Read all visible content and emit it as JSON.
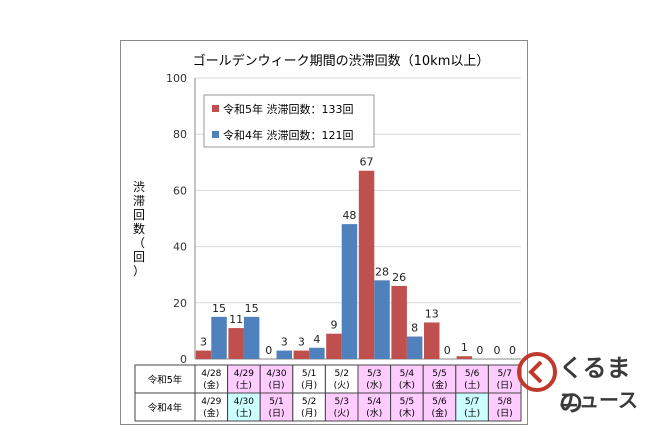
{
  "chart_data": {
    "type": "bar",
    "title": "ゴールデンウィーク期間の渋滞回数（10km以上）",
    "ylabel": "渋滞回数（回）",
    "ylim": [
      0,
      100
    ],
    "yticks": [
      0,
      20,
      40,
      60,
      80,
      100
    ],
    "legend_position": "top-left",
    "series": [
      {
        "name": "令和5年 渋滞回数：133回",
        "color": "#c0504d",
        "values": [
          3,
          11,
          0,
          3,
          9,
          67,
          26,
          13,
          1,
          0
        ],
        "row_label": "令和5年",
        "dates": [
          [
            "4/28",
            "(金)"
          ],
          [
            "4/29",
            "(土)"
          ],
          [
            "4/30",
            "(日)"
          ],
          [
            "5/1",
            "(月)"
          ],
          [
            "5/2",
            "(火)"
          ],
          [
            "5/3",
            "(水)"
          ],
          [
            "5/4",
            "(木)"
          ],
          [
            "5/5",
            "(金)"
          ],
          [
            "5/6",
            "(土)"
          ],
          [
            "5/7",
            "(日)"
          ]
        ]
      },
      {
        "name": "令和4年 渋滞回数：121回",
        "color": "#4f81bd",
        "values": [
          15,
          15,
          3,
          4,
          48,
          28,
          8,
          0,
          0,
          0
        ],
        "row_label": "令和4年",
        "dates": [
          [
            "4/29",
            "(金)"
          ],
          [
            "4/30",
            "(土)"
          ],
          [
            "5/1",
            "(日)"
          ],
          [
            "5/2",
            "(月)"
          ],
          [
            "5/3",
            "(火)"
          ],
          [
            "5/4",
            "(水)"
          ],
          [
            "5/5",
            "(木)"
          ],
          [
            "5/6",
            "(金)"
          ],
          [
            "5/7",
            "(土)"
          ],
          [
            "5/8",
            "(日)"
          ]
        ]
      }
    ],
    "cell_colors": [
      "#ffffff",
      "#ffccff",
      "#ffccff",
      "#ffffff",
      "#ffffff",
      "#ffccff",
      "#ffccff",
      "#ffccff",
      "#ffccff",
      "#ffccff"
    ],
    "cell_colors_r4": [
      "#ffffff",
      "#ccffff",
      "#ffccff",
      "#ffffff",
      "#ffccff",
      "#ffccff",
      "#ffccff",
      "#ffccff",
      "#ccffff",
      "#ffccff"
    ]
  },
  "logo": {
    "line1": "くるまの",
    "line2": "ニュース"
  }
}
